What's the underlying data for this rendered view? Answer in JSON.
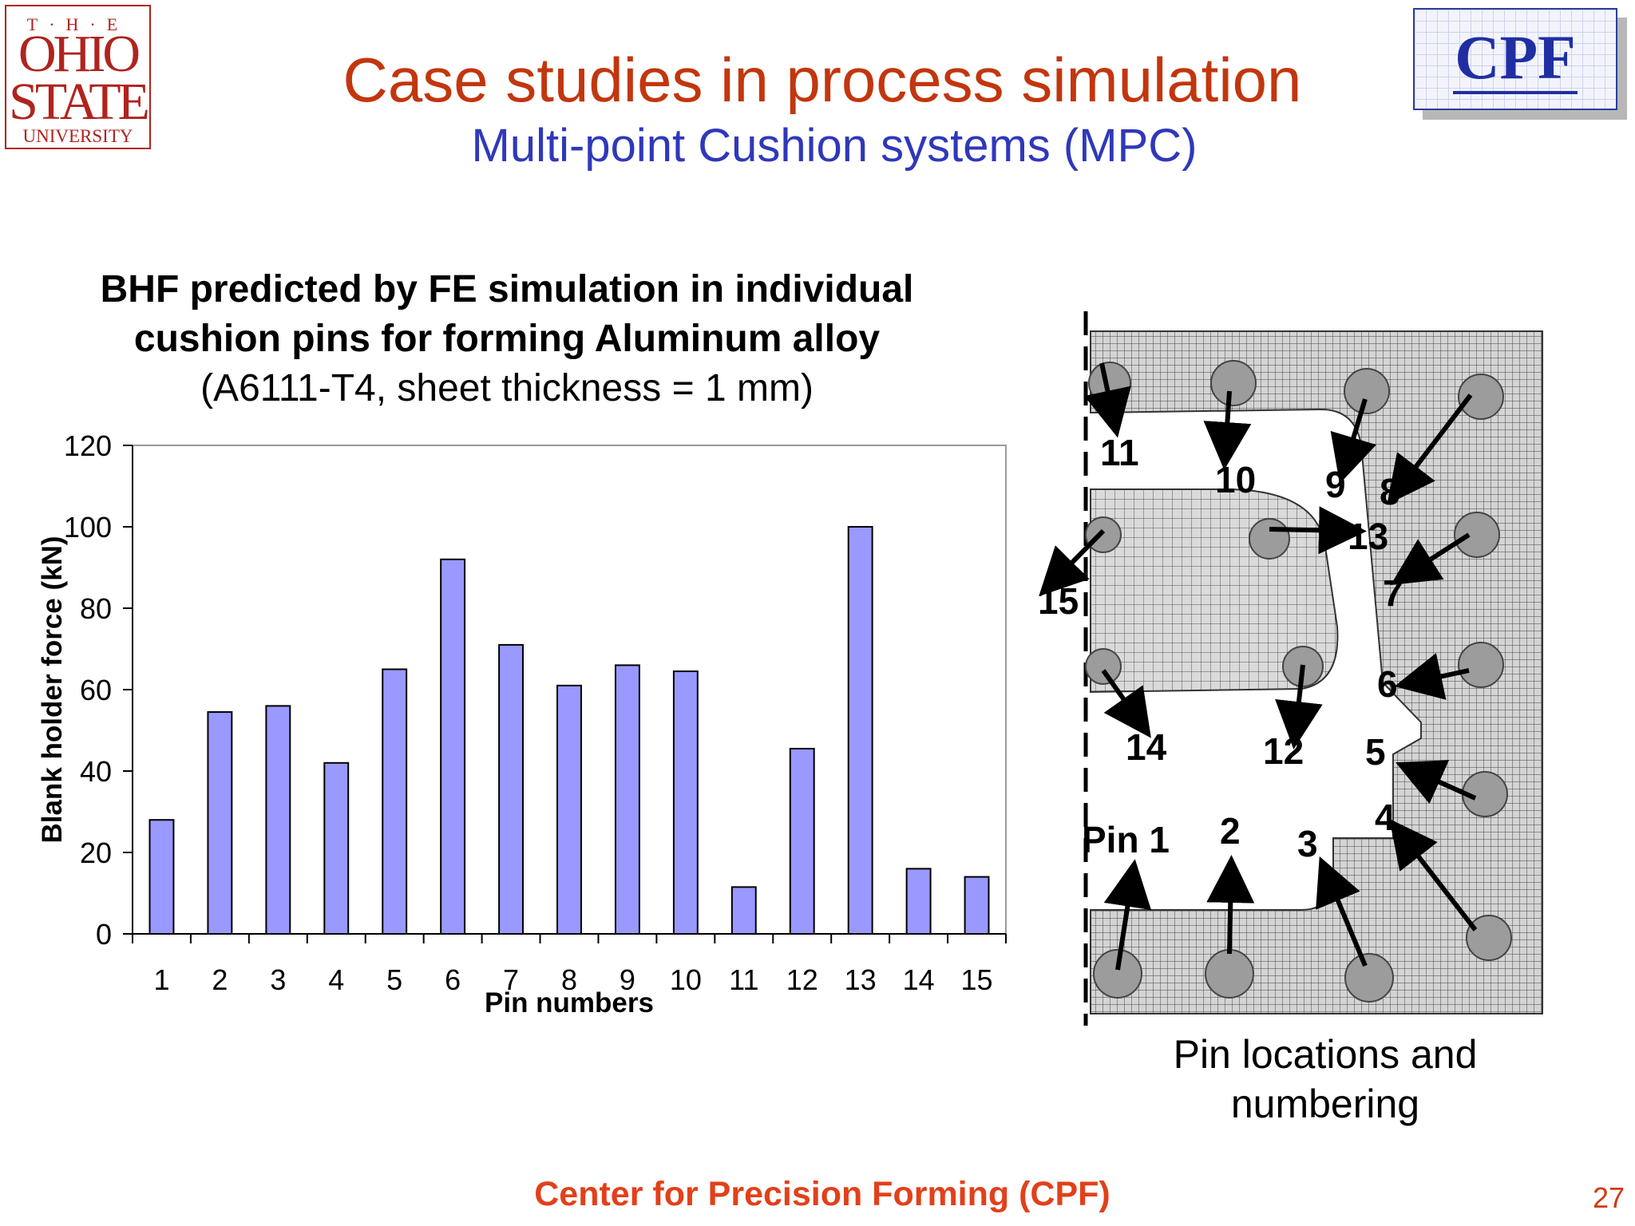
{
  "logos": {
    "osu": {
      "the": "T·H·E",
      "ohio": "OHIO",
      "state": "STATE",
      "university": "UNIVERSITY"
    },
    "cpf": "CPF"
  },
  "header": {
    "title": "Case studies in process simulation",
    "subtitle": "Multi-point Cushion systems (MPC)"
  },
  "chart_heading": {
    "line1": "BHF predicted by FE simulation in individual",
    "line2": "cushion pins for forming Aluminum alloy",
    "line3": "(A6111-T4, sheet thickness = 1 mm)"
  },
  "chart_data": {
    "type": "bar",
    "title": "BHF predicted by FE simulation in individual cushion pins for forming Aluminum alloy (A6111-T4, sheet thickness = 1 mm)",
    "xlabel": "Pin numbers",
    "ylabel": "Blank holder force (kN)",
    "categories": [
      "1",
      "2",
      "3",
      "4",
      "5",
      "6",
      "7",
      "8",
      "9",
      "10",
      "11",
      "12",
      "13",
      "14",
      "15"
    ],
    "values": [
      28,
      54.5,
      56,
      42,
      65,
      92,
      71,
      61,
      66,
      64.5,
      11.5,
      45.5,
      100,
      16,
      14
    ],
    "ylim": [
      0,
      120
    ],
    "yticks": [
      0,
      20,
      40,
      60,
      80,
      100,
      120
    ],
    "bar_color": "#9999ff",
    "grid": false,
    "legend": "none"
  },
  "mesh_figure": {
    "pin_labels": [
      "Pin 1",
      "2",
      "3",
      "4",
      "5",
      "6",
      "7",
      "8",
      "9",
      "10",
      "11",
      "12",
      "13",
      "14",
      "15"
    ],
    "caption_line1": "Pin locations and",
    "caption_line2": "numbering"
  },
  "footer": {
    "text": "Center for Precision Forming (CPF)",
    "page_number": "27"
  }
}
